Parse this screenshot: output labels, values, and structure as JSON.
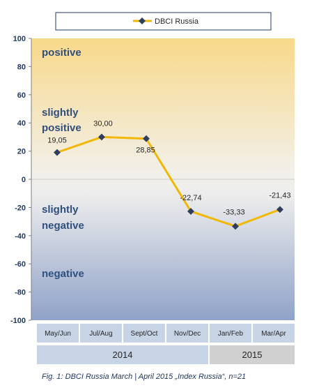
{
  "chart_data": {
    "type": "line",
    "categories": [
      "May/Jun",
      "Jul/Aug",
      "Sept/Oct",
      "Nov/Dec",
      "Jan/Feb",
      "Mar/Apr"
    ],
    "groups": [
      {
        "label": "2014",
        "categories": [
          "May/Jun",
          "Jul/Aug",
          "Sept/Oct",
          "Nov/Dec"
        ]
      },
      {
        "label": "2015",
        "categories": [
          "Jan/Feb",
          "Mar/Apr"
        ]
      }
    ],
    "series": [
      {
        "name": "DBCI Russia",
        "values": [
          19.05,
          30.0,
          28.85,
          -22.74,
          -33.33,
          -21.43
        ],
        "value_labels": [
          "19,05",
          "30,00",
          "28,85",
          "-22,74",
          "-33,33",
          "-21,43"
        ],
        "color": "#f2b705",
        "marker_color": "#2e3e5c"
      }
    ],
    "ylim": [
      -100,
      100
    ],
    "yticks": [
      100,
      80,
      60,
      40,
      20,
      0,
      -20,
      -40,
      -60,
      -80,
      -100
    ],
    "xlabel": "",
    "ylabel": "",
    "legend": {
      "position": "top",
      "entries": [
        "DBCI Russia"
      ]
    },
    "annotations": [
      "positive",
      "slightly positive",
      "slightly negative",
      "negative"
    ],
    "grid": false,
    "colors": {
      "positive_top": "#f8d98a",
      "neutral": "#ededed",
      "negative_bottom": "#8fa2c8",
      "year_2014_bg": "#c6d4e6",
      "year_2015_bg": "#d0d0d0"
    }
  },
  "caption": "Fig. 1: DBCI Russia March | April 2015 „Index Russia“, n=21"
}
